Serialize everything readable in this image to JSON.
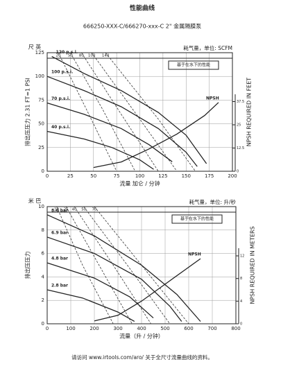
{
  "header": {
    "title": "性能曲线",
    "subtitle": "666250-XXX-C/666270-xxx-C 2\" 金属隔膜泵"
  },
  "footer": "请访问 www.irtools.com/aro/ 关于全尺寸流量曲线的资料。",
  "chart_data": [
    {
      "type": "line",
      "y_unit": "尺 英",
      "y_label": "排出压压力 2.31 FT=1 PSI",
      "x_label": "流量 加仑 / 分钟",
      "y2_label": "NPSH REQUIRED IN FEET",
      "air_label": "耗气量，单位: SCFM",
      "note": "基于在水下的性能",
      "xlim": [
        0,
        200
      ],
      "xticks": [
        0,
        25,
        50,
        75,
        100,
        125,
        150,
        175,
        200
      ],
      "ylim": [
        0,
        125
      ],
      "yticks": [
        0,
        25,
        50,
        75,
        100,
        125
      ],
      "y2lim": [
        0,
        63.8
      ],
      "y2ticks": [
        0,
        12.5,
        25,
        37.5
      ],
      "grid": true,
      "series": [
        {
          "name": "120 p.s.i.",
          "color": "#222",
          "x": [
            5,
            40,
            80,
            120,
            150,
            172
          ],
          "values": [
            121,
            103,
            85,
            62,
            38,
            8
          ]
        },
        {
          "name": "100 p.s.i.",
          "color": "#222",
          "x": [
            0,
            40,
            80,
            120,
            150,
            162
          ],
          "values": [
            100,
            85,
            68,
            45,
            20,
            5
          ]
        },
        {
          "name": "70 p.s.i.",
          "color": "#222",
          "x": [
            0,
            40,
            80,
            110,
            135
          ],
          "values": [
            72,
            60,
            45,
            28,
            10
          ]
        },
        {
          "name": "40 p.s.i.",
          "color": "#222",
          "x": [
            0,
            40,
            70,
            100,
            115
          ],
          "values": [
            42,
            34,
            25,
            12,
            2
          ]
        },
        {
          "name": "NPSH",
          "color": "#222",
          "axis": "y2",
          "x": [
            50,
            80,
            110,
            140,
            170,
            185
          ],
          "values": [
            2,
            5,
            12,
            20,
            30,
            37
          ]
        }
      ],
      "air_series": [
        {
          "name": "20",
          "x": [
            12,
            40,
            75
          ],
          "values": [
            125,
            70,
            0
          ]
        },
        {
          "name": "50",
          "x": [
            25,
            60,
            95
          ],
          "values": [
            125,
            65,
            0
          ]
        },
        {
          "name": "80",
          "x": [
            37,
            80,
            120
          ],
          "values": [
            125,
            60,
            0
          ]
        },
        {
          "name": "100",
          "x": [
            48,
            100,
            140
          ],
          "values": [
            125,
            55,
            0
          ]
        },
        {
          "name": "140",
          "x": [
            63,
            120,
            160
          ],
          "values": [
            125,
            55,
            0
          ]
        }
      ]
    },
    {
      "type": "line",
      "y_unit": "米 巴",
      "y_label": "排出压压力",
      "x_label": "流量（升 / 分钟）",
      "y2_label": "NPSH REQUIRED IN METERS",
      "air_label": "耗气量，单位: 升/秒",
      "note": "基于在水下的性能",
      "xlim": [
        0,
        800
      ],
      "xticks": [
        0,
        100,
        200,
        300,
        400,
        500,
        600,
        700,
        800
      ],
      "ylim": [
        0,
        10
      ],
      "yticks": [
        0,
        2,
        4,
        6,
        8,
        10
      ],
      "y2lim": [
        0,
        20.7
      ],
      "y2ticks": [
        0,
        4,
        8,
        12
      ],
      "grid": true,
      "series": [
        {
          "name": "8.6 bar",
          "color": "#222",
          "x": [
            0,
            200,
            400,
            550,
            650
          ],
          "values": [
            9.3,
            7.5,
            5,
            2.5,
            0.2
          ]
        },
        {
          "name": "6.9 bar",
          "color": "#222",
          "x": [
            0,
            200,
            400,
            520,
            570
          ],
          "values": [
            7.4,
            6,
            3.8,
            1.5,
            0.2
          ]
        },
        {
          "name": "4.8 bar",
          "color": "#222",
          "x": [
            0,
            200,
            350,
            450
          ],
          "values": [
            5.2,
            3.9,
            2.3,
            0.5
          ]
        },
        {
          "name": "2.8 bar",
          "color": "#222",
          "x": [
            0,
            150,
            300,
            370
          ],
          "values": [
            2.9,
            2.2,
            1,
            0.2
          ]
        },
        {
          "name": "NPSH",
          "color": "#222",
          "axis": "y2",
          "x": [
            200,
            300,
            400,
            500,
            600,
            650
          ],
          "values": [
            0.5,
            1.5,
            4,
            7,
            10,
            11.5
          ]
        }
      ],
      "air_series": [
        {
          "name": "10",
          "x": [
            40,
            150,
            280
          ],
          "values": [
            10,
            5,
            0
          ]
        },
        {
          "name": "25",
          "x": [
            80,
            220,
            360
          ],
          "values": [
            10,
            5,
            0
          ]
        },
        {
          "name": "40",
          "x": [
            115,
            280,
            440
          ],
          "values": [
            10,
            5,
            0
          ]
        },
        {
          "name": "50",
          "x": [
            155,
            340,
            520
          ],
          "values": [
            10,
            5,
            0
          ]
        },
        {
          "name": "70",
          "x": [
            200,
            400,
            600
          ],
          "values": [
            10,
            5,
            0
          ]
        }
      ]
    }
  ]
}
